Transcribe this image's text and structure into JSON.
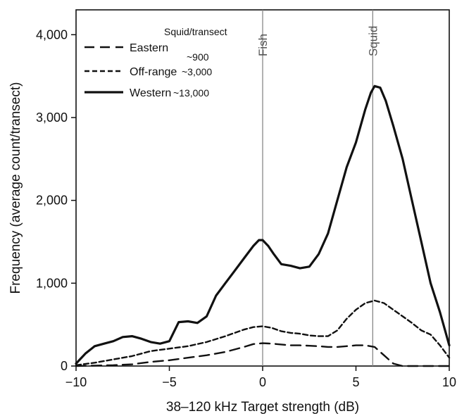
{
  "chart_data": {
    "type": "line",
    "title": "",
    "xlabel": "38–120 kHz  Target strength (dB)",
    "ylabel": "Frequency (average count/transect)",
    "xlim": [
      -10,
      10
    ],
    "ylim": [
      0,
      4300
    ],
    "x_ticks": [
      -10,
      -5,
      0,
      5,
      10
    ],
    "x_tick_labels": [
      "−10",
      "−5",
      "0",
      "5",
      "10"
    ],
    "y_ticks": [
      0,
      1000,
      2000,
      3000,
      4000
    ],
    "y_tick_labels": [
      "0",
      "1,000",
      "2,000",
      "3,000",
      "4,000"
    ],
    "grid": false,
    "legend": {
      "position": "top-left",
      "header": "Squid/transect",
      "entries": [
        {
          "name": "Eastern",
          "count": "~900",
          "style": "long-dash"
        },
        {
          "name": "Off-range",
          "count": "~3,000",
          "style": "dash-dot"
        },
        {
          "name": "Western",
          "count": "~13,000",
          "style": "solid"
        }
      ]
    },
    "reference_lines": [
      {
        "x": 0,
        "label": "Fish"
      },
      {
        "x": 5.9,
        "label": "Squid"
      }
    ],
    "series": [
      {
        "name": "Western",
        "style": "solid",
        "x": [
          -10,
          -9.5,
          -9,
          -8.5,
          -8,
          -7.5,
          -7,
          -6.5,
          -6,
          -5.5,
          -5,
          -4.5,
          -4,
          -3.5,
          -3,
          -2.5,
          -2,
          -1.5,
          -1,
          -0.5,
          -0.2,
          0,
          0.3,
          0.6,
          1,
          1.5,
          2,
          2.5,
          3,
          3.5,
          4,
          4.5,
          5,
          5.5,
          5.8,
          6,
          6.3,
          6.6,
          7,
          7.5,
          8,
          8.5,
          9,
          9.5,
          10
        ],
        "y": [
          30,
          150,
          240,
          270,
          300,
          350,
          360,
          330,
          290,
          270,
          300,
          530,
          540,
          520,
          600,
          850,
          1000,
          1150,
          1300,
          1450,
          1520,
          1520,
          1450,
          1350,
          1230,
          1210,
          1180,
          1200,
          1350,
          1600,
          2000,
          2400,
          2700,
          3100,
          3300,
          3380,
          3360,
          3200,
          2900,
          2500,
          2000,
          1500,
          1000,
          650,
          250
        ]
      },
      {
        "name": "Off-range",
        "style": "dash-dot",
        "x": [
          -10,
          -9,
          -8,
          -7,
          -6,
          -5,
          -4,
          -3,
          -2,
          -1,
          -0.5,
          0,
          0.5,
          1,
          1.5,
          2,
          2.5,
          3,
          3.5,
          4,
          4.5,
          5,
          5.5,
          6,
          6.5,
          7,
          7.5,
          8,
          8.5,
          9,
          9.5,
          10
        ],
        "y": [
          10,
          40,
          80,
          120,
          180,
          210,
          240,
          290,
          360,
          440,
          470,
          480,
          460,
          420,
          400,
          390,
          370,
          360,
          360,
          430,
          570,
          680,
          760,
          790,
          760,
          680,
          600,
          520,
          430,
          380,
          250,
          100
        ]
      },
      {
        "name": "Eastern",
        "style": "long-dash",
        "x": [
          -10,
          -9,
          -8,
          -7,
          -6,
          -5,
          -4,
          -3,
          -2,
          -1,
          -0.5,
          0,
          0.5,
          1,
          1.5,
          2,
          2.5,
          3,
          3.5,
          4,
          4.5,
          5,
          5.5,
          6,
          6.5,
          7,
          7.5,
          8,
          9,
          10
        ],
        "y": [
          0,
          5,
          10,
          20,
          50,
          70,
          100,
          130,
          170,
          230,
          265,
          275,
          270,
          260,
          250,
          250,
          245,
          240,
          230,
          230,
          240,
          250,
          250,
          230,
          130,
          30,
          0,
          0,
          0,
          0
        ]
      }
    ]
  }
}
